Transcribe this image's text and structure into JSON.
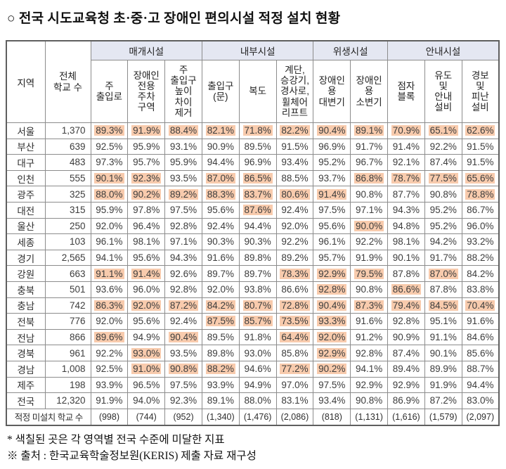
{
  "title": {
    "text": "○ 전국 시도교육청 초·중·고 장애인 편의시설 적정 설치 현황"
  },
  "colors": {
    "highlight": "#F8CBAD",
    "group_header_bg": "#E4E7F2",
    "grid": "#8C8C8C"
  },
  "table": {
    "col_region": "지역",
    "col_total": "전체\n학교 수",
    "groups": [
      {
        "label": "매개시설"
      },
      {
        "label": "내부시설"
      },
      {
        "label": "위생시설"
      },
      {
        "label": "안내시설"
      }
    ],
    "sub_headers": [
      "주\n출입로",
      "장애인\n전용\n주차\n구역",
      "주\n출입구\n높이\n차이\n제거",
      "출입구\n(문)",
      "복도",
      "계단,\n승강기,\n경사로,\n휠체어\n리프트",
      "장애인\n용\n대변기",
      "장애인\n용\n소변기",
      "점자\n블록",
      "유도\n및\n안내\n설비",
      "경보\n및\n피난\n설비"
    ],
    "rows": [
      {
        "region": "서울",
        "schools": "1,370",
        "values": [
          "89.3%",
          "91.9%",
          "88.4%",
          "82.1%",
          "71.8%",
          "82.2%",
          "90.4%",
          "89.1%",
          "70.9%",
          "65.1%",
          "62.6%"
        ],
        "hl": [
          1,
          1,
          1,
          1,
          1,
          1,
          1,
          1,
          1,
          1,
          1
        ]
      },
      {
        "region": "부산",
        "schools": "639",
        "values": [
          "92.5%",
          "95.9%",
          "93.1%",
          "90.9%",
          "89.5%",
          "91.5%",
          "96.9%",
          "91.7%",
          "91.4%",
          "92.2%",
          "91.5%"
        ],
        "hl": [
          0,
          0,
          0,
          0,
          0,
          0,
          0,
          0,
          0,
          0,
          0
        ]
      },
      {
        "region": "대구",
        "schools": "483",
        "values": [
          "97.3%",
          "95.7%",
          "95.9%",
          "94.4%",
          "96.9%",
          "93.4%",
          "95.2%",
          "96.7%",
          "92.1%",
          "87.4%",
          "91.5%"
        ],
        "hl": [
          0,
          0,
          0,
          0,
          0,
          0,
          0,
          0,
          0,
          0,
          0
        ]
      },
      {
        "region": "인천",
        "schools": "555",
        "values": [
          "90.1%",
          "92.3%",
          "93.5%",
          "87.0%",
          "86.5%",
          "88.5%",
          "93.7%",
          "86.8%",
          "78.7%",
          "77.5%",
          "65.6%"
        ],
        "hl": [
          1,
          1,
          0,
          1,
          1,
          0,
          0,
          1,
          1,
          1,
          1
        ]
      },
      {
        "region": "광주",
        "schools": "325",
        "values": [
          "88.0%",
          "90.2%",
          "89.2%",
          "88.3%",
          "83.7%",
          "80.6%",
          "91.4%",
          "90.8%",
          "87.7%",
          "90.8%",
          "78.8%"
        ],
        "hl": [
          1,
          1,
          1,
          1,
          1,
          1,
          1,
          0,
          0,
          0,
          1
        ]
      },
      {
        "region": "대전",
        "schools": "315",
        "values": [
          "95.9%",
          "97.8%",
          "97.5%",
          "95.6%",
          "87.6%",
          "92.4%",
          "97.5%",
          "97.1%",
          "94.3%",
          "95.2%",
          "86.7%"
        ],
        "hl": [
          0,
          0,
          0,
          0,
          1,
          0,
          0,
          0,
          0,
          0,
          0
        ]
      },
      {
        "region": "울산",
        "schools": "250",
        "values": [
          "92.0%",
          "96.4%",
          "92.8%",
          "92.4%",
          "94.4%",
          "92.0%",
          "95.6%",
          "90.0%",
          "94.8%",
          "95.2%",
          "96.0%"
        ],
        "hl": [
          0,
          0,
          0,
          0,
          0,
          0,
          0,
          1,
          0,
          0,
          0
        ]
      },
      {
        "region": "세종",
        "schools": "103",
        "values": [
          "96.1%",
          "98.1%",
          "97.1%",
          "90.3%",
          "90.3%",
          "92.2%",
          "96.1%",
          "92.2%",
          "98.1%",
          "94.2%",
          "93.2%"
        ],
        "hl": [
          0,
          0,
          0,
          0,
          0,
          0,
          0,
          0,
          0,
          0,
          0
        ]
      },
      {
        "region": "경기",
        "schools": "2,565",
        "values": [
          "94.1%",
          "95.6%",
          "94.3%",
          "91.6%",
          "89.8%",
          "89.2%",
          "95.7%",
          "91.9%",
          "90.1%",
          "91.7%",
          "88.2%"
        ],
        "hl": [
          0,
          0,
          0,
          0,
          0,
          0,
          0,
          0,
          0,
          0,
          0
        ]
      },
      {
        "region": "강원",
        "schools": "663",
        "values": [
          "91.1%",
          "91.4%",
          "92.6%",
          "89.7%",
          "89.7%",
          "78.3%",
          "92.9%",
          "79.5%",
          "87.8%",
          "87.0%",
          "84.2%"
        ],
        "hl": [
          1,
          1,
          0,
          0,
          0,
          1,
          1,
          1,
          0,
          1,
          0
        ]
      },
      {
        "region": "충북",
        "schools": "501",
        "values": [
          "93.6%",
          "96.0%",
          "92.8%",
          "92.0%",
          "93.8%",
          "86.6%",
          "92.8%",
          "90.8%",
          "86.6%",
          "87.8%",
          "83.8%"
        ],
        "hl": [
          0,
          0,
          0,
          0,
          0,
          0,
          1,
          0,
          1,
          0,
          0
        ]
      },
      {
        "region": "충남",
        "schools": "742",
        "values": [
          "86.3%",
          "92.0%",
          "87.2%",
          "84.2%",
          "80.7%",
          "72.8%",
          "90.4%",
          "87.3%",
          "79.4%",
          "84.5%",
          "70.4%"
        ],
        "hl": [
          1,
          1,
          1,
          1,
          1,
          1,
          1,
          1,
          1,
          1,
          1
        ]
      },
      {
        "region": "전북",
        "schools": "776",
        "values": [
          "92.0%",
          "95.6%",
          "92.4%",
          "87.5%",
          "85.7%",
          "73.5%",
          "93.3%",
          "91.6%",
          "92.8%",
          "95.1%",
          "91.6%"
        ],
        "hl": [
          0,
          0,
          0,
          1,
          1,
          1,
          1,
          0,
          0,
          0,
          0
        ]
      },
      {
        "region": "전남",
        "schools": "866",
        "values": [
          "89.6%",
          "94.9%",
          "90.4%",
          "89.5%",
          "91.8%",
          "64.4%",
          "92.0%",
          "91.2%",
          "90.9%",
          "91.1%",
          "84.6%"
        ],
        "hl": [
          1,
          0,
          1,
          0,
          0,
          1,
          1,
          0,
          0,
          0,
          0
        ]
      },
      {
        "region": "경북",
        "schools": "961",
        "values": [
          "92.2%",
          "93.0%",
          "93.5%",
          "89.8%",
          "93.0%",
          "85.8%",
          "92.9%",
          "92.8%",
          "87.4%",
          "90.1%",
          "85.6%"
        ],
        "hl": [
          0,
          1,
          0,
          0,
          0,
          0,
          1,
          0,
          0,
          0,
          0
        ]
      },
      {
        "region": "경남",
        "schools": "1,008",
        "values": [
          "92.5%",
          "91.0%",
          "90.8%",
          "88.2%",
          "94.6%",
          "77.2%",
          "90.2%",
          "94.1%",
          "89.4%",
          "89.9%",
          "88.7%"
        ],
        "hl": [
          0,
          1,
          1,
          1,
          0,
          1,
          1,
          0,
          0,
          0,
          0
        ]
      },
      {
        "region": "제주",
        "schools": "198",
        "values": [
          "93.9%",
          "96.5%",
          "97.5%",
          "93.9%",
          "94.9%",
          "97.0%",
          "97.5%",
          "92.9%",
          "92.9%",
          "91.9%",
          "94.4%"
        ],
        "hl": [
          0,
          0,
          0,
          0,
          0,
          0,
          0,
          0,
          0,
          0,
          0
        ]
      },
      {
        "region": "전국",
        "schools": "12,320",
        "values": [
          "91.9%",
          "94.0%",
          "92.3%",
          "89.1%",
          "88.0%",
          "83.1%",
          "93.4%",
          "90.8%",
          "86.9%",
          "87.2%",
          "83.0%"
        ],
        "hl": [
          0,
          0,
          0,
          0,
          0,
          0,
          0,
          0,
          0,
          0,
          0
        ]
      }
    ],
    "summary": {
      "label": "적정 미설치 학교 수",
      "values": [
        "(998)",
        "(744)",
        "(952)",
        "(1,340)",
        "(1,476)",
        "(2,086)",
        "(818)",
        "(1,131)",
        "(1,616)",
        "(1,579)",
        "(2,097)"
      ]
    }
  },
  "notes": [
    "* 색칠된 곳은 각 영역별 전국 수준에 미달한 지표",
    "※ 출처 : 한국교육학술정보원(KERIS) 제출 자료 재구성"
  ]
}
